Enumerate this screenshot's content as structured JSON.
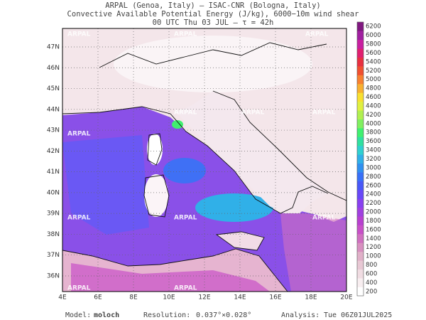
{
  "header": {
    "lines": [
      "ARPAL (Genoa, Italy)  —  ISAC-CNR (Bologna, Italy)",
      "Convective Available Potential Energy (J/kg), 6000−10m wind shear",
      "00 UTC Thu 03 JUL  —  τ = 42h"
    ]
  },
  "map": {
    "lon_labels": [
      "4E",
      "6E",
      "8E",
      "10E",
      "12E",
      "14E",
      "16E",
      "18E",
      "20E"
    ],
    "lat_labels": [
      "47N",
      "46N",
      "45N",
      "44N",
      "43N",
      "42N",
      "41N",
      "40N",
      "39N",
      "38N",
      "37N",
      "36N"
    ],
    "watermark": "ARPAL"
  },
  "colorbar": {
    "ticks": [
      200,
      400,
      600,
      800,
      1000,
      1200,
      1400,
      1600,
      1800,
      2000,
      2200,
      2400,
      2600,
      2800,
      3000,
      3200,
      3400,
      3600,
      3800,
      4000,
      4200,
      4400,
      4600,
      4800,
      5000,
      5200,
      5400,
      5600,
      5800,
      6000,
      6200
    ],
    "colors": [
      "#ffffff",
      "#f8eef0",
      "#f0dce2",
      "#e8c8d4",
      "#e0b0c8",
      "#d890c0",
      "#d070c0",
      "#c850c8",
      "#b840d0",
      "#a040e0",
      "#8840f0",
      "#6848f8",
      "#4858f8",
      "#3870f8",
      "#3090f0",
      "#30b0e8",
      "#30d0d0",
      "#30e0a0",
      "#40f070",
      "#80f060",
      "#b0f050",
      "#e0f040",
      "#f8e030",
      "#f8b030",
      "#f88030",
      "#f05030",
      "#e83040",
      "#e02070",
      "#c820a0",
      "#a020a0",
      "#801880"
    ]
  },
  "footer": {
    "model_label": "Model:",
    "model": "moloch",
    "resolution_label": "Resolution:",
    "resolution": "0.037°×0.028°",
    "analysis_label": "Analysis:",
    "analysis": "Tue 06Z01JUL2025"
  }
}
